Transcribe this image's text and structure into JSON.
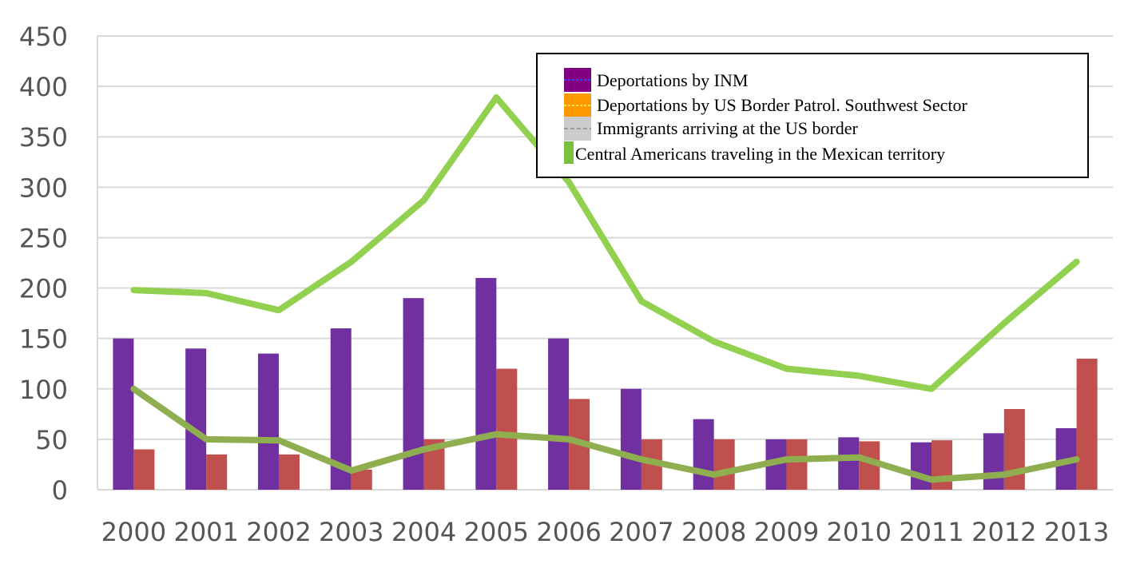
{
  "chart_data": {
    "type": "bar",
    "title": "",
    "xlabel": "",
    "ylabel": "",
    "ylim": [
      0,
      450
    ],
    "yticks": [
      0,
      50,
      100,
      150,
      200,
      250,
      300,
      350,
      400,
      450
    ],
    "grid": true,
    "legend_position": "top-right",
    "categories": [
      "2000",
      "2001",
      "2002",
      "2003",
      "2004",
      "2005",
      "2006",
      "2007",
      "2008",
      "2009",
      "2010",
      "2011",
      "2012",
      "2013"
    ],
    "series": [
      {
        "name": "Deportations by INM",
        "kind": "bar",
        "color": "#7030a0",
        "values": [
          150,
          140,
          135,
          160,
          190,
          210,
          150,
          100,
          70,
          50,
          52,
          47,
          56,
          61
        ]
      },
      {
        "name": "Deportations by US Border Patrol. Southwest Sector",
        "kind": "bar",
        "color": "#c0504d",
        "values": [
          40,
          35,
          35,
          20,
          50,
          120,
          90,
          50,
          50,
          50,
          48,
          49,
          80,
          130
        ]
      },
      {
        "name": "Immigrants arriving at the US border",
        "kind": "line",
        "color": "#8fae4f",
        "values": [
          100,
          50,
          49,
          19,
          40,
          55,
          50,
          30,
          15,
          30,
          32,
          10,
          15,
          30
        ]
      },
      {
        "name": "Central Americans traveling in the Mexican territory",
        "kind": "line",
        "color": "#92d050",
        "values": [
          198,
          195,
          178,
          226,
          287,
          389,
          305,
          187,
          147,
          120,
          113,
          100,
          165,
          226
        ]
      }
    ],
    "legend": [
      {
        "label": "Deportations by INM",
        "swatch": "#800080",
        "dash": "#4040ff"
      },
      {
        "label": "Deportations by US Border Patrol. Southwest Sector",
        "swatch": "#ff9900",
        "dash": "#ffdd44"
      },
      {
        "label": "Immigrants arriving at the US border",
        "swatch": "#cccccc",
        "dash": "#999999"
      },
      {
        "label": "Central Americans traveling in the Mexican territory",
        "swatch": "#7ac142",
        "dash": ""
      }
    ],
    "colors": {
      "grid": "#d9d9d9",
      "axis_text": "#555555"
    }
  }
}
